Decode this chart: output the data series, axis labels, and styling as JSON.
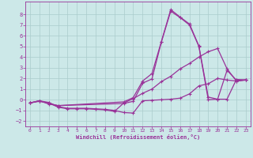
{
  "xlabel": "Windchill (Refroidissement éolien,°C)",
  "bg_color": "#cce8e8",
  "grid_color": "#aacccc",
  "line_color": "#993399",
  "xlim": [
    -0.5,
    23.5
  ],
  "ylim": [
    -2.5,
    9.2
  ],
  "xticks": [
    0,
    1,
    2,
    3,
    4,
    5,
    6,
    7,
    8,
    9,
    10,
    11,
    12,
    13,
    14,
    15,
    16,
    17,
    18,
    19,
    20,
    21,
    22,
    23
  ],
  "yticks": [
    -2,
    -1,
    0,
    1,
    2,
    3,
    4,
    5,
    6,
    7,
    8
  ],
  "line1_x": [
    0,
    1,
    2,
    3,
    4,
    5,
    6,
    7,
    8,
    9,
    10,
    11,
    12,
    13,
    14,
    15,
    16,
    17,
    18,
    19,
    20,
    21,
    22,
    23
  ],
  "line1_y": [
    -0.3,
    -0.15,
    -0.3,
    -0.7,
    -0.85,
    -0.85,
    -0.85,
    -0.9,
    -0.95,
    -1.1,
    -0.3,
    0.1,
    0.6,
    1.0,
    1.7,
    2.2,
    2.9,
    3.4,
    4.0,
    4.5,
    4.8,
    2.9,
    1.75,
    1.85
  ],
  "line2_x": [
    0,
    1,
    2,
    3,
    4,
    5,
    6,
    7,
    8,
    9,
    10,
    11,
    12,
    13,
    14,
    15,
    16,
    17,
    18,
    19,
    20,
    21,
    22,
    23
  ],
  "line2_y": [
    -0.3,
    -0.1,
    -0.25,
    -0.65,
    -0.8,
    -0.8,
    -0.8,
    -0.85,
    -0.9,
    -1.0,
    -1.2,
    -1.25,
    -0.1,
    -0.05,
    0.0,
    0.05,
    0.15,
    0.55,
    1.3,
    1.5,
    2.0,
    1.85,
    1.75,
    1.85
  ],
  "line3_x": [
    0,
    1,
    2,
    3,
    10,
    11,
    12,
    13,
    14,
    15,
    16,
    17,
    18,
    19,
    20,
    21,
    22,
    23
  ],
  "line3_y": [
    -0.3,
    -0.1,
    -0.35,
    -0.55,
    -0.35,
    -0.15,
    1.55,
    1.95,
    5.4,
    8.3,
    7.7,
    7.0,
    5.0,
    0.0,
    0.05,
    0.05,
    1.9,
    1.85
  ],
  "line4_x": [
    0,
    1,
    2,
    3,
    10,
    11,
    12,
    13,
    14,
    15,
    16,
    17,
    18,
    19,
    20,
    21,
    22,
    23
  ],
  "line4_y": [
    -0.3,
    -0.1,
    -0.4,
    -0.55,
    -0.2,
    0.2,
    1.75,
    2.45,
    5.45,
    8.45,
    7.75,
    7.1,
    5.05,
    0.25,
    0.05,
    2.75,
    1.85,
    1.85
  ]
}
